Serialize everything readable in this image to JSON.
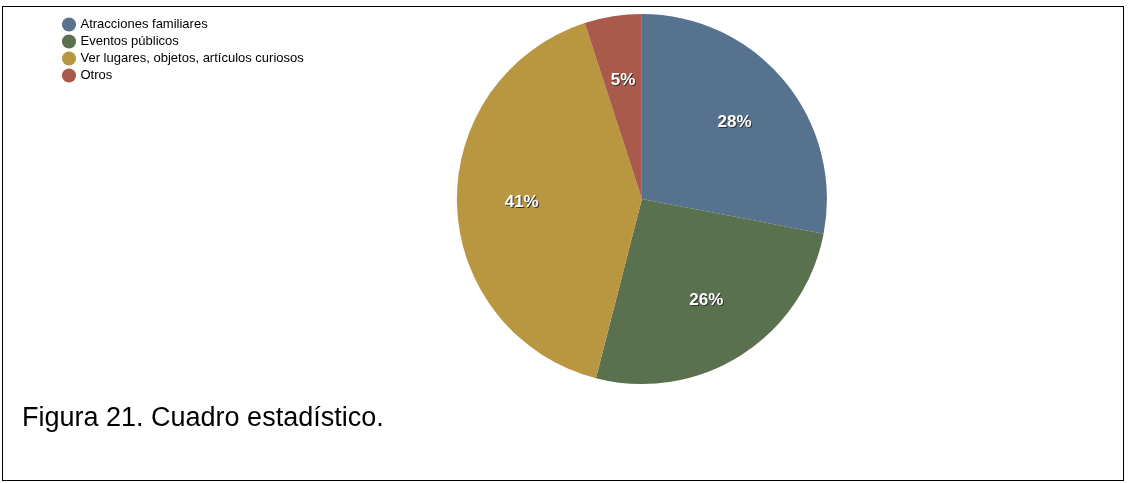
{
  "chart_data": {
    "type": "pie",
    "categories": [
      "Atracciones familiares",
      "Eventos públicos",
      "Ver lugares, objetos, artículos curiosos",
      "Otros"
    ],
    "values": [
      28,
      26,
      41,
      5
    ],
    "colors": [
      "#56728f",
      "#5a7150",
      "#b99640",
      "#a95a4a"
    ],
    "value_labels": [
      "28%",
      "26%",
      "41%",
      "5%"
    ],
    "legend": "top left",
    "annotations": [
      "Figura 21. Cuadro estadístico."
    ]
  }
}
